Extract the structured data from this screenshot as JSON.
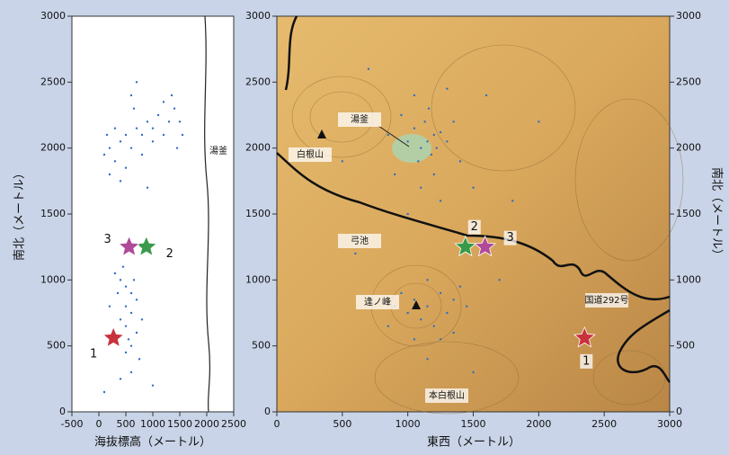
{
  "chart_data": [
    {
      "type": "scatter",
      "xlabel": "海抜標高（メートル）",
      "ylabel": "南北（メートル）",
      "xlim": [
        -500,
        2500
      ],
      "ylim": [
        0,
        3000
      ],
      "xticks": [
        -500,
        0,
        500,
        1000,
        1500,
        2000,
        2500
      ],
      "yticks": [
        0,
        500,
        1000,
        1500,
        2000,
        2500,
        3000
      ],
      "annotations": [
        "湯釜"
      ],
      "series": [
        {
          "color": "#2e6fc4",
          "x": [
            100,
            200,
            300,
            400,
            500,
            600,
            700,
            800,
            900,
            1000,
            1100,
            1200,
            1300,
            1400,
            1500,
            1550,
            300,
            600,
            700,
            1200,
            800,
            200,
            400,
            1000,
            1450,
            150,
            500,
            1350,
            900,
            650,
            300,
            400,
            500,
            600,
            700,
            500,
            600,
            400,
            500,
            700,
            300,
            600,
            500,
            200,
            800,
            450,
            650,
            550,
            350,
            750,
            600,
            400,
            100,
            1000
          ],
          "y": [
            1950,
            2000,
            1900,
            2050,
            2100,
            2000,
            2150,
            2100,
            2200,
            2150,
            2250,
            2100,
            2200,
            2300,
            2200,
            2100,
            2150,
            2400,
            2500,
            2350,
            1950,
            1800,
            1750,
            2050,
            2000,
            2100,
            1850,
            2400,
            1700,
            2300,
            1050,
            1000,
            950,
            900,
            850,
            800,
            750,
            700,
            650,
            600,
            600,
            500,
            450,
            800,
            700,
            1100,
            1000,
            550,
            900,
            400,
            300,
            250,
            150,
            200
          ]
        }
      ],
      "stars": [
        {
          "label": "1",
          "color": "#c8323c",
          "x": 270,
          "y": 560
        },
        {
          "label": "2",
          "color": "#3a9a4a",
          "x": 880,
          "y": 1250
        },
        {
          "label": "3",
          "color": "#b04a9a",
          "x": 560,
          "y": 1250
        }
      ]
    },
    {
      "type": "map",
      "xlabel": "東西（メートル）",
      "ylabel": "南北（メートル）",
      "xlim": [
        0,
        3000
      ],
      "ylim": [
        0,
        3000
      ],
      "xticks": [
        0,
        500,
        1000,
        1500,
        2000,
        2500,
        3000
      ],
      "yticks": [
        0,
        500,
        1000,
        1500,
        2000,
        2500,
        3000
      ],
      "annotations": [
        "湯釜",
        "白根山",
        "弓池",
        "逢ノ峰",
        "本白根山",
        "国道292号"
      ],
      "series": [
        {
          "color": "#2e6fc4",
          "x": [
            1100,
            1150,
            1200,
            1050,
            1180,
            1220,
            1130,
            1250,
            1080,
            1160,
            1000,
            1300,
            950,
            1350,
            1200,
            1100,
            1250,
            900,
            1400,
            1050,
            1300,
            850,
            1500,
            1000,
            950,
            1050,
            1150,
            1250,
            1350,
            1100,
            1200,
            1000,
            1300,
            1400,
            900,
            1150,
            1250,
            1050,
            1450,
            850,
            1150,
            1350,
            700,
            1600,
            1800,
            500,
            2000,
            1700,
            600,
            1500
          ],
          "y": [
            2000,
            2050,
            2100,
            2150,
            1950,
            2000,
            2200,
            2120,
            1900,
            2300,
            2050,
            2050,
            2250,
            2200,
            1800,
            1700,
            1600,
            1800,
            1900,
            2400,
            2450,
            2100,
            1700,
            1500,
            900,
            850,
            800,
            900,
            850,
            700,
            650,
            750,
            750,
            950,
            800,
            1000,
            550,
            550,
            800,
            650,
            400,
            600,
            2600,
            2400,
            1600,
            1900,
            2200,
            1000,
            1200,
            300
          ]
        }
      ],
      "stars": [
        {
          "label": "1",
          "color": "#c8323c",
          "x": 2350,
          "y": 560
        },
        {
          "label": "2",
          "color": "#3a9a4a",
          "x": 1440,
          "y": 1250
        },
        {
          "label": "3",
          "color": "#b04a9a",
          "x": 1590,
          "y": 1250
        }
      ]
    }
  ]
}
